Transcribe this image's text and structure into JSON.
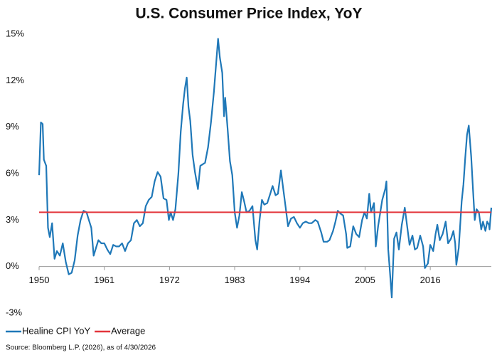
{
  "chart_data": {
    "type": "line",
    "title": "U.S. Consumer Price Index, YoY",
    "source": "Source: Bloomberg L.P. (2026), as of 4/30/2026",
    "xlim": [
      1950,
      2026.3
    ],
    "xticks": [
      1950,
      1961,
      1972,
      1983,
      1994,
      2005,
      2016
    ],
    "ylim": [
      -3,
      15
    ],
    "yticks": [
      {
        "value": -3,
        "label": "-3%"
      },
      {
        "value": 0,
        "label": "0%"
      },
      {
        "value": 3,
        "label": "3%"
      },
      {
        "value": 6,
        "label": "6%"
      },
      {
        "value": 9,
        "label": "9%"
      },
      {
        "value": 12,
        "label": "12%"
      },
      {
        "value": 15,
        "label": "15%"
      }
    ],
    "legend": "bottom-left",
    "series": [
      {
        "name": "Healine CPI YoY",
        "color": "#1f78b8",
        "x": [
          1950.0,
          1950.3,
          1950.6,
          1950.8,
          1951.2,
          1951.5,
          1951.8,
          1952.2,
          1952.6,
          1953,
          1953.5,
          1954,
          1954.5,
          1955,
          1955.5,
          1956,
          1956.5,
          1957,
          1957.5,
          1958,
          1958.4,
          1958.8,
          1959.2,
          1959.6,
          1960,
          1960.5,
          1961,
          1961.5,
          1962,
          1962.5,
          1963,
          1963.5,
          1964,
          1964.5,
          1965,
          1965.5,
          1966,
          1966.5,
          1967,
          1967.5,
          1968,
          1968.5,
          1969,
          1969.5,
          1970,
          1970.5,
          1971,
          1971.5,
          1971.9,
          1972.2,
          1972.6,
          1973,
          1973.5,
          1973.9,
          1974.3,
          1974.6,
          1974.9,
          1975.2,
          1975.5,
          1975.9,
          1976.3,
          1976.8,
          1977.2,
          1977.6,
          1978,
          1978.5,
          1979,
          1979.5,
          1980.2,
          1980.5,
          1980.9,
          1981.2,
          1981.4,
          1981.8,
          1982.2,
          1982.6,
          1983,
          1983.4,
          1983.8,
          1984.2,
          1984.6,
          1985,
          1985.5,
          1986,
          1986.5,
          1986.8,
          1987.2,
          1987.6,
          1988,
          1988.5,
          1989,
          1989.4,
          1989.9,
          1990.3,
          1990.8,
          1991.2,
          1991.6,
          1992,
          1992.5,
          1993,
          1993.5,
          1994,
          1994.5,
          1995,
          1995.5,
          1996,
          1996.6,
          1997,
          1997.6,
          1998,
          1998.6,
          1999,
          1999.6,
          2000,
          2000.4,
          2000.9,
          2001.3,
          2001.8,
          2002,
          2002.5,
          2003,
          2003.5,
          2004,
          2004.5,
          2004.9,
          2005.3,
          2005.7,
          2006,
          2006.5,
          2006.8,
          2007.2,
          2007.9,
          2008.4,
          2008.6,
          2008.9,
          2009.2,
          2009.5,
          2009.9,
          2010.3,
          2010.7,
          2011.2,
          2011.7,
          2012,
          2012.5,
          2013,
          2013.4,
          2013.8,
          2014.3,
          2014.8,
          2015.1,
          2015.6,
          2016,
          2016.5,
          2016.9,
          2017.2,
          2017.6,
          2018.1,
          2018.6,
          2019,
          2019.5,
          2019.9,
          2020.2,
          2020.4,
          2020.8,
          2021.3,
          2021.6,
          2021.9,
          2022.2,
          2022.5,
          2022.9,
          2023.2,
          2023.5,
          2023.8,
          2024.2,
          2024.6,
          2024.9,
          2025.3,
          2025.6,
          2025.9,
          2026.0,
          2026.3
        ],
        "values": [
          5.9,
          9.3,
          9.2,
          6.9,
          6.5,
          2.5,
          1.9,
          2.8,
          0.5,
          1.0,
          0.7,
          1.5,
          0.3,
          -0.5,
          -0.4,
          0.4,
          2.0,
          3.0,
          3.6,
          3.5,
          3.0,
          2.5,
          0.7,
          1.2,
          1.7,
          1.5,
          1.5,
          1.1,
          0.8,
          1.4,
          1.3,
          1.3,
          1.5,
          1.0,
          1.5,
          1.7,
          2.8,
          3.0,
          2.6,
          2.8,
          3.9,
          4.3,
          4.5,
          5.5,
          6.1,
          5.8,
          4.4,
          4.3,
          3.0,
          3.5,
          3.0,
          3.7,
          6.0,
          8.7,
          10.5,
          11.5,
          12.2,
          10.3,
          9.4,
          7.2,
          6.1,
          5.0,
          6.5,
          6.6,
          6.7,
          7.7,
          9.3,
          11.3,
          14.7,
          13.5,
          12.5,
          9.7,
          10.9,
          8.9,
          6.8,
          5.9,
          3.5,
          2.5,
          3.3,
          4.8,
          4.2,
          3.5,
          3.6,
          3.9,
          1.7,
          1.1,
          3.0,
          4.3,
          4.0,
          4.1,
          4.7,
          5.2,
          4.6,
          4.7,
          6.2,
          5.0,
          3.8,
          2.6,
          3.1,
          3.2,
          2.8,
          2.5,
          2.8,
          2.9,
          2.8,
          2.8,
          3.0,
          2.9,
          2.2,
          1.6,
          1.6,
          1.7,
          2.3,
          2.9,
          3.6,
          3.4,
          3.3,
          2.1,
          1.2,
          1.3,
          2.6,
          2.1,
          1.9,
          3.0,
          3.5,
          3.1,
          4.7,
          3.5,
          4.1,
          1.3,
          2.6,
          4.3,
          5.0,
          5.5,
          1.1,
          -0.4,
          -2.0,
          1.8,
          2.2,
          1.1,
          2.7,
          3.8,
          2.9,
          1.4,
          2.0,
          1.1,
          1.2,
          2.0,
          1.3,
          -0.1,
          0.2,
          1.4,
          1.0,
          2.1,
          2.7,
          1.7,
          2.1,
          2.9,
          1.5,
          1.8,
          2.3,
          1.5,
          0.1,
          1.2,
          4.2,
          5.3,
          7.0,
          8.5,
          9.1,
          7.1,
          5.0,
          3.0,
          3.7,
          3.5,
          2.4,
          2.9,
          2.3,
          2.9,
          2.7,
          2.4,
          3.8
        ]
      },
      {
        "name": "Average",
        "color": "#e3353b",
        "x": [
          1950,
          2026.3
        ],
        "values": [
          3.5,
          3.5
        ]
      }
    ]
  }
}
